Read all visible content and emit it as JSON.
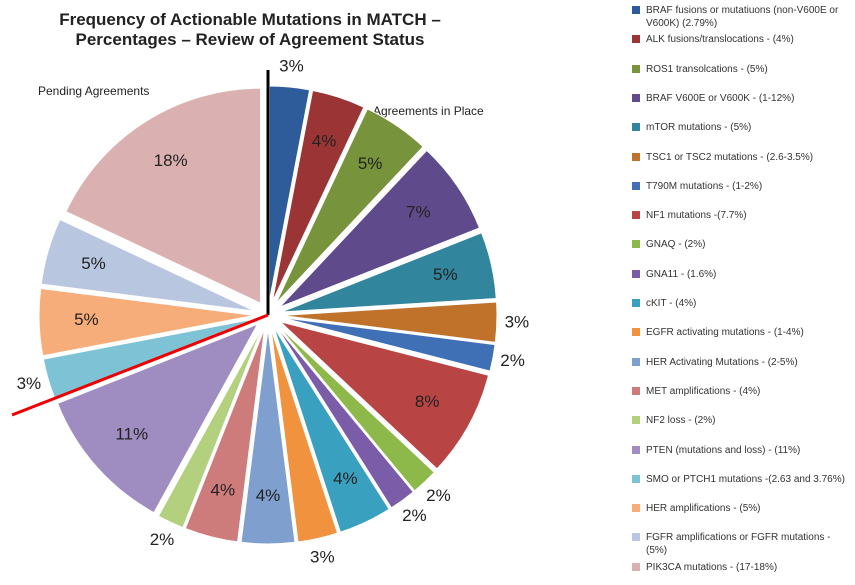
{
  "chart_data": {
    "type": "pie",
    "title": "Frequency of Actionable Mutations in MATCH – Percentages – Review of Agreement Status",
    "annotations": [
      "Pending Agreements",
      "Agreements in Place"
    ],
    "categories": [
      "BRAF fusions or mutatiuons (non-V600E or V600K) (2.79%)",
      "ALK fusions/translocations - (4%)",
      "ROS1 transolcations - (5%)",
      "BRAF V600E or V600K - (1-12%)",
      "mTOR mutations - (5%)",
      "TSC1 or TSC2 mutations - (2.6-3.5%)",
      "T790M mutations - (1-2%)",
      "NF1 mutations -(7.7%)",
      "GNAQ -  (2%)",
      "GNA11 -  (1.6%)",
      "cKIT -  (4%)",
      "EGFR activating mutations - (1-4%)",
      "HER Activating Mutations - (2-5%)",
      "MET amplifications - (4%)",
      "NF2 loss - (2%)",
      "PTEN (mutations and loss) - (11%)",
      "SMO or PTCH1 mutations -(2.63 and 3.76%)",
      "HER amplifications - (5%)",
      "FGFR amplifications or FGFR mutations - (5%)",
      "PIK3CA mutations - (17-18%)"
    ],
    "values": [
      3,
      4,
      5,
      7,
      5,
      3,
      2,
      8,
      2,
      2,
      4,
      3,
      4,
      4,
      2,
      11,
      3,
      5,
      5,
      18
    ],
    "value_labels": [
      "3%",
      "4%",
      "5%",
      "7%",
      "5%",
      "3%",
      "2%",
      "8%",
      "2%",
      "2%",
      "4%",
      "3%",
      "4%",
      "4%",
      "2%",
      "11%",
      "3%",
      "5%",
      "5%",
      "18%"
    ],
    "colors": [
      "#2e5b9a",
      "#9b3535",
      "#77933c",
      "#5f4a8b",
      "#31859c",
      "#c0712a",
      "#3f6fb5",
      "#b94444",
      "#8db84a",
      "#7a5ca8",
      "#3aa0c0",
      "#f0923e",
      "#7f9fcf",
      "#cd7b7b",
      "#b3d07e",
      "#9f8cc0",
      "#7dc3d5",
      "#f6ad7a",
      "#b8c6e0",
      "#dbb0b0"
    ]
  }
}
